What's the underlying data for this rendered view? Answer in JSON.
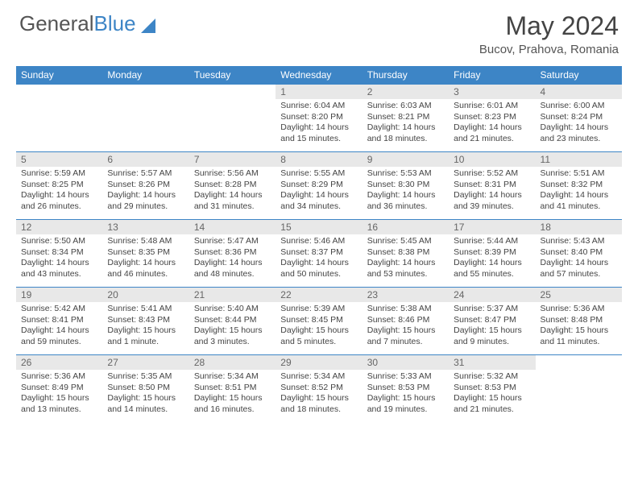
{
  "logo": {
    "word1": "General",
    "word2": "Blue"
  },
  "title": "May 2024",
  "location": "Bucov, Prahova, Romania",
  "day_headers": [
    "Sunday",
    "Monday",
    "Tuesday",
    "Wednesday",
    "Thursday",
    "Friday",
    "Saturday"
  ],
  "colors": {
    "header_bg": "#3d85c6",
    "header_fg": "#ffffff",
    "daynum_bg": "#e8e8e8",
    "daynum_fg": "#666666",
    "border": "#3d85c6",
    "text": "#444444"
  },
  "weeks": [
    [
      null,
      null,
      null,
      {
        "n": "1",
        "sr": "Sunrise: 6:04 AM",
        "ss": "Sunset: 8:20 PM",
        "dl": "Daylight: 14 hours and 15 minutes."
      },
      {
        "n": "2",
        "sr": "Sunrise: 6:03 AM",
        "ss": "Sunset: 8:21 PM",
        "dl": "Daylight: 14 hours and 18 minutes."
      },
      {
        "n": "3",
        "sr": "Sunrise: 6:01 AM",
        "ss": "Sunset: 8:23 PM",
        "dl": "Daylight: 14 hours and 21 minutes."
      },
      {
        "n": "4",
        "sr": "Sunrise: 6:00 AM",
        "ss": "Sunset: 8:24 PM",
        "dl": "Daylight: 14 hours and 23 minutes."
      }
    ],
    [
      {
        "n": "5",
        "sr": "Sunrise: 5:59 AM",
        "ss": "Sunset: 8:25 PM",
        "dl": "Daylight: 14 hours and 26 minutes."
      },
      {
        "n": "6",
        "sr": "Sunrise: 5:57 AM",
        "ss": "Sunset: 8:26 PM",
        "dl": "Daylight: 14 hours and 29 minutes."
      },
      {
        "n": "7",
        "sr": "Sunrise: 5:56 AM",
        "ss": "Sunset: 8:28 PM",
        "dl": "Daylight: 14 hours and 31 minutes."
      },
      {
        "n": "8",
        "sr": "Sunrise: 5:55 AM",
        "ss": "Sunset: 8:29 PM",
        "dl": "Daylight: 14 hours and 34 minutes."
      },
      {
        "n": "9",
        "sr": "Sunrise: 5:53 AM",
        "ss": "Sunset: 8:30 PM",
        "dl": "Daylight: 14 hours and 36 minutes."
      },
      {
        "n": "10",
        "sr": "Sunrise: 5:52 AM",
        "ss": "Sunset: 8:31 PM",
        "dl": "Daylight: 14 hours and 39 minutes."
      },
      {
        "n": "11",
        "sr": "Sunrise: 5:51 AM",
        "ss": "Sunset: 8:32 PM",
        "dl": "Daylight: 14 hours and 41 minutes."
      }
    ],
    [
      {
        "n": "12",
        "sr": "Sunrise: 5:50 AM",
        "ss": "Sunset: 8:34 PM",
        "dl": "Daylight: 14 hours and 43 minutes."
      },
      {
        "n": "13",
        "sr": "Sunrise: 5:48 AM",
        "ss": "Sunset: 8:35 PM",
        "dl": "Daylight: 14 hours and 46 minutes."
      },
      {
        "n": "14",
        "sr": "Sunrise: 5:47 AM",
        "ss": "Sunset: 8:36 PM",
        "dl": "Daylight: 14 hours and 48 minutes."
      },
      {
        "n": "15",
        "sr": "Sunrise: 5:46 AM",
        "ss": "Sunset: 8:37 PM",
        "dl": "Daylight: 14 hours and 50 minutes."
      },
      {
        "n": "16",
        "sr": "Sunrise: 5:45 AM",
        "ss": "Sunset: 8:38 PM",
        "dl": "Daylight: 14 hours and 53 minutes."
      },
      {
        "n": "17",
        "sr": "Sunrise: 5:44 AM",
        "ss": "Sunset: 8:39 PM",
        "dl": "Daylight: 14 hours and 55 minutes."
      },
      {
        "n": "18",
        "sr": "Sunrise: 5:43 AM",
        "ss": "Sunset: 8:40 PM",
        "dl": "Daylight: 14 hours and 57 minutes."
      }
    ],
    [
      {
        "n": "19",
        "sr": "Sunrise: 5:42 AM",
        "ss": "Sunset: 8:41 PM",
        "dl": "Daylight: 14 hours and 59 minutes."
      },
      {
        "n": "20",
        "sr": "Sunrise: 5:41 AM",
        "ss": "Sunset: 8:43 PM",
        "dl": "Daylight: 15 hours and 1 minute."
      },
      {
        "n": "21",
        "sr": "Sunrise: 5:40 AM",
        "ss": "Sunset: 8:44 PM",
        "dl": "Daylight: 15 hours and 3 minutes."
      },
      {
        "n": "22",
        "sr": "Sunrise: 5:39 AM",
        "ss": "Sunset: 8:45 PM",
        "dl": "Daylight: 15 hours and 5 minutes."
      },
      {
        "n": "23",
        "sr": "Sunrise: 5:38 AM",
        "ss": "Sunset: 8:46 PM",
        "dl": "Daylight: 15 hours and 7 minutes."
      },
      {
        "n": "24",
        "sr": "Sunrise: 5:37 AM",
        "ss": "Sunset: 8:47 PM",
        "dl": "Daylight: 15 hours and 9 minutes."
      },
      {
        "n": "25",
        "sr": "Sunrise: 5:36 AM",
        "ss": "Sunset: 8:48 PM",
        "dl": "Daylight: 15 hours and 11 minutes."
      }
    ],
    [
      {
        "n": "26",
        "sr": "Sunrise: 5:36 AM",
        "ss": "Sunset: 8:49 PM",
        "dl": "Daylight: 15 hours and 13 minutes."
      },
      {
        "n": "27",
        "sr": "Sunrise: 5:35 AM",
        "ss": "Sunset: 8:50 PM",
        "dl": "Daylight: 15 hours and 14 minutes."
      },
      {
        "n": "28",
        "sr": "Sunrise: 5:34 AM",
        "ss": "Sunset: 8:51 PM",
        "dl": "Daylight: 15 hours and 16 minutes."
      },
      {
        "n": "29",
        "sr": "Sunrise: 5:34 AM",
        "ss": "Sunset: 8:52 PM",
        "dl": "Daylight: 15 hours and 18 minutes."
      },
      {
        "n": "30",
        "sr": "Sunrise: 5:33 AM",
        "ss": "Sunset: 8:53 PM",
        "dl": "Daylight: 15 hours and 19 minutes."
      },
      {
        "n": "31",
        "sr": "Sunrise: 5:32 AM",
        "ss": "Sunset: 8:53 PM",
        "dl": "Daylight: 15 hours and 21 minutes."
      },
      null
    ]
  ]
}
